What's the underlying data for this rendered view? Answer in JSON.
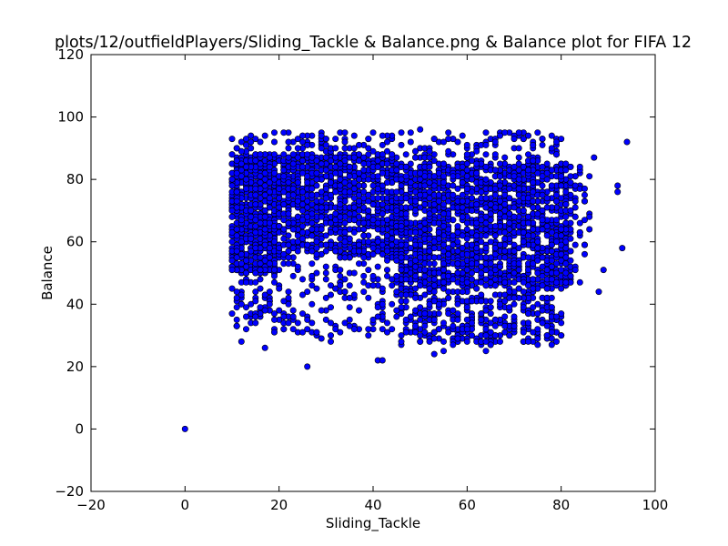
{
  "chart_data": {
    "type": "scatter",
    "title": "plots/12/outfieldPlayers/Sliding_Tackle & Balance.png & Balance plot for FIFA 12",
    "xlabel": "Sliding_Tackle",
    "ylabel": "Balance",
    "xlim": [
      -20,
      100
    ],
    "ylim": [
      -20,
      120
    ],
    "xticks": [
      -20,
      0,
      20,
      40,
      60,
      80,
      100
    ],
    "yticks": [
      -20,
      0,
      20,
      40,
      60,
      80,
      100,
      120
    ],
    "xtick_labels": [
      "−20",
      "0",
      "20",
      "40",
      "60",
      "80",
      "100"
    ],
    "ytick_labels": [
      "−20",
      "0",
      "20",
      "40",
      "60",
      "80",
      "100",
      "120"
    ],
    "grid": false,
    "legend": "none",
    "marker_color": "#0000ff",
    "marker_edge_color": "#000000",
    "notable_points": [
      {
        "x": 0,
        "y": 0
      },
      {
        "x": 26,
        "y": 20
      },
      {
        "x": 41,
        "y": 22
      },
      {
        "x": 42,
        "y": 22
      },
      {
        "x": 94,
        "y": 92
      },
      {
        "x": 93,
        "y": 58
      },
      {
        "x": 92,
        "y": 76
      },
      {
        "x": 92,
        "y": 78
      },
      {
        "x": 89,
        "y": 51
      },
      {
        "x": 88,
        "y": 44
      },
      {
        "x": 87,
        "y": 87
      },
      {
        "x": 53,
        "y": 24
      },
      {
        "x": 64,
        "y": 25
      },
      {
        "x": 55,
        "y": 25
      },
      {
        "x": 12,
        "y": 28
      },
      {
        "x": 17,
        "y": 26
      },
      {
        "x": 29,
        "y": 29
      },
      {
        "x": 31,
        "y": 28
      },
      {
        "x": 50,
        "y": 96
      },
      {
        "x": 21,
        "y": 95
      },
      {
        "x": 19,
        "y": 95
      },
      {
        "x": 40,
        "y": 95
      },
      {
        "x": 42,
        "y": 94
      }
    ],
    "clusters": [
      {
        "x_range": [
          10,
          20
        ],
        "y_range": [
          50,
          88
        ],
        "count": 700
      },
      {
        "x_range": [
          20,
          45
        ],
        "y_range": [
          55,
          88
        ],
        "count": 900
      },
      {
        "x_range": [
          45,
          70
        ],
        "y_range": [
          45,
          85
        ],
        "count": 1100
      },
      {
        "x_range": [
          70,
          82
        ],
        "y_range": [
          45,
          85
        ],
        "count": 500
      },
      {
        "x_range": [
          10,
          45
        ],
        "y_range": [
          30,
          55
        ],
        "count": 200
      },
      {
        "x_range": [
          45,
          80
        ],
        "y_range": [
          27,
          45
        ],
        "count": 350
      },
      {
        "x_range": [
          10,
          80
        ],
        "y_range": [
          85,
          95
        ],
        "count": 200
      },
      {
        "x_range": [
          80,
          86
        ],
        "y_range": [
          45,
          85
        ],
        "count": 60
      }
    ]
  }
}
